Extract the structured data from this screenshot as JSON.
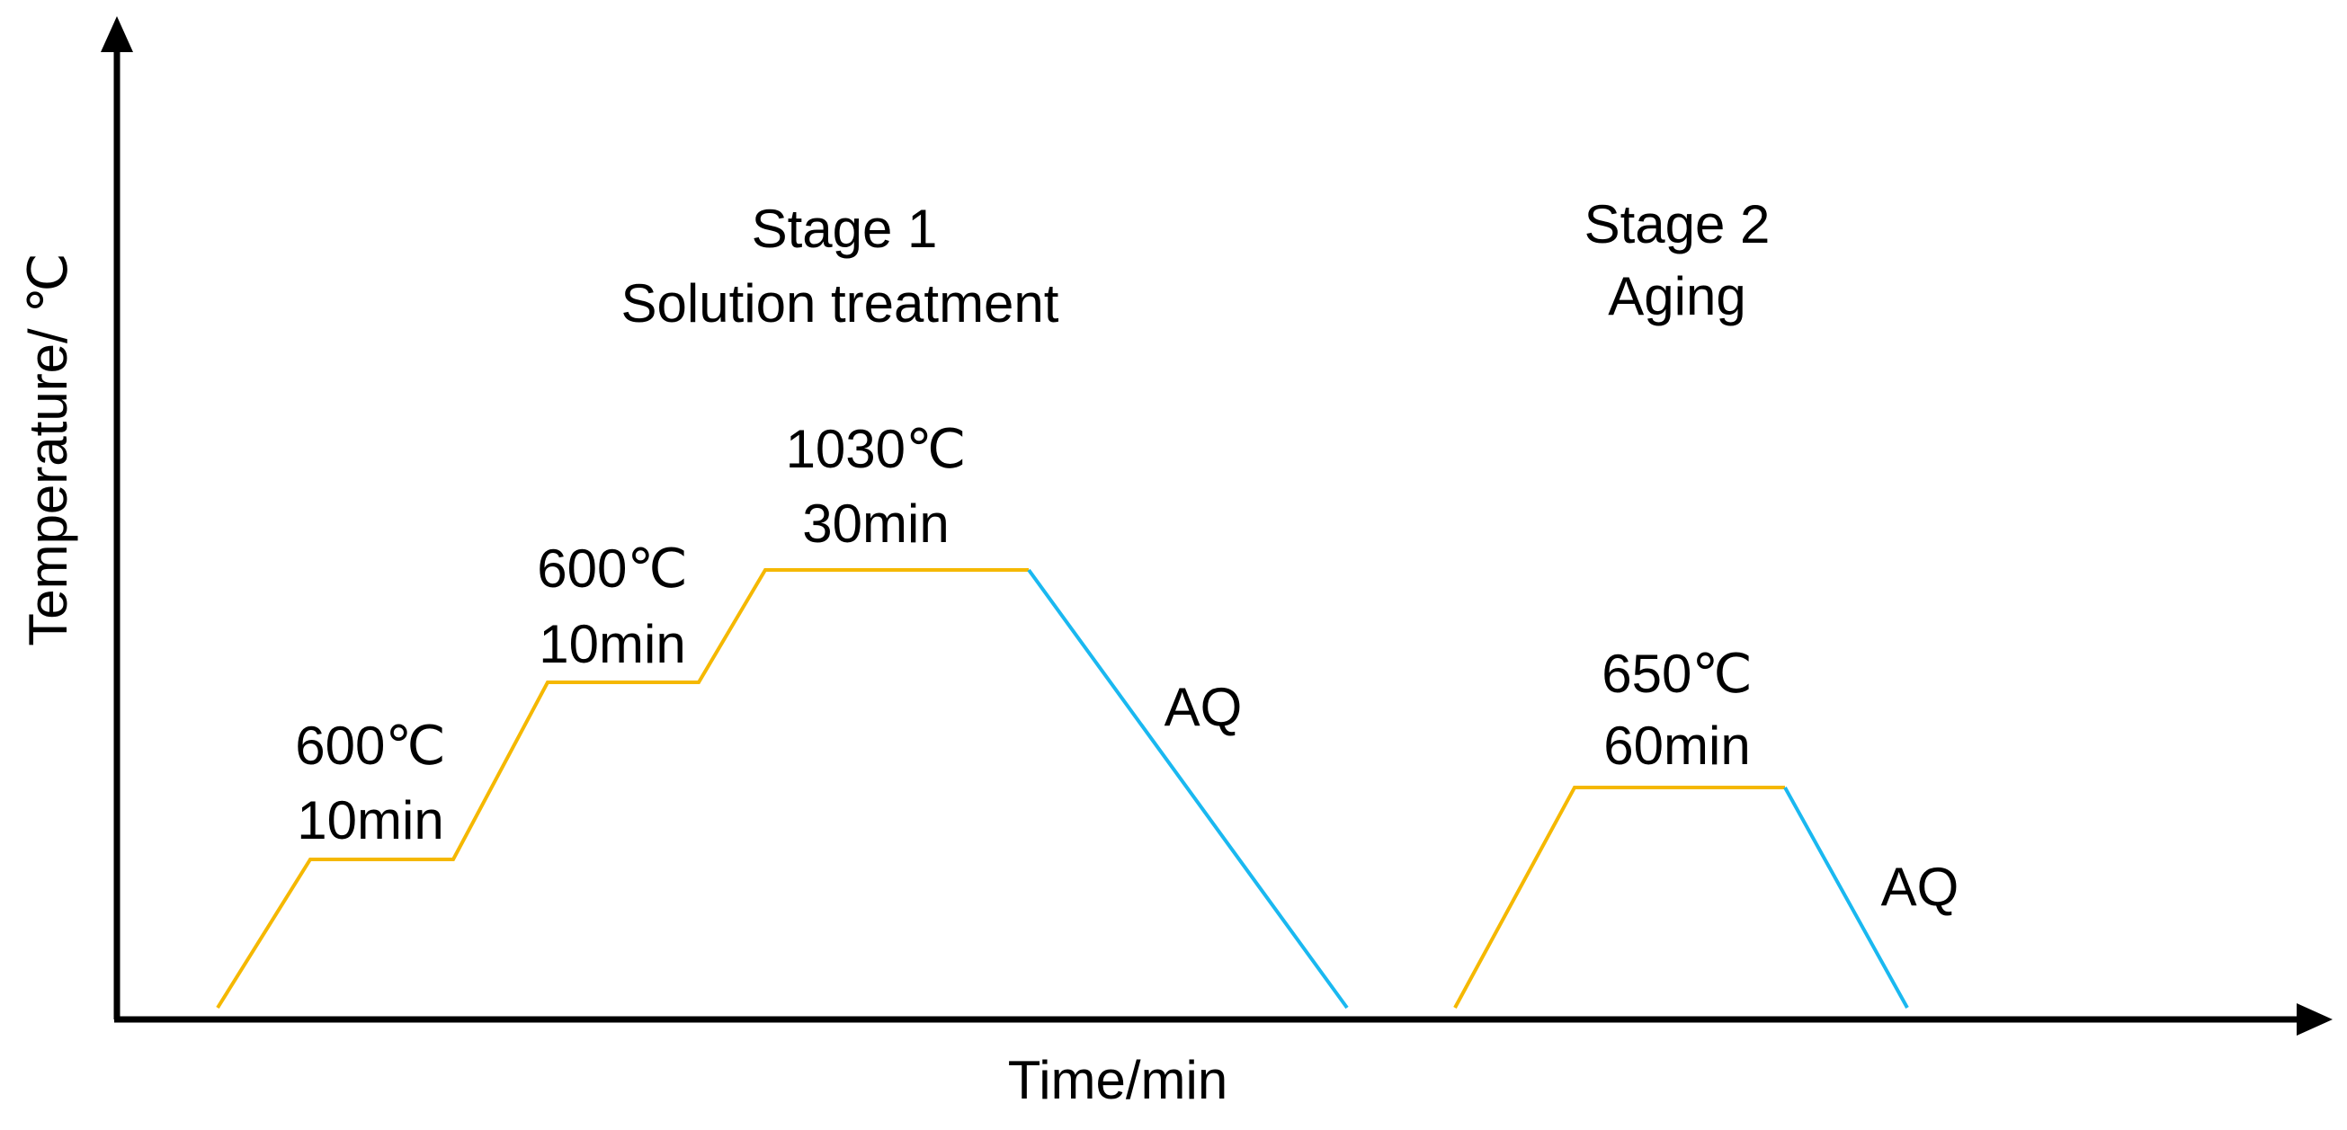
{
  "axes": {
    "x_label": "Time/min",
    "y_label": "Temperature/ ℃"
  },
  "stages": [
    {
      "title": "Stage 1",
      "subtitle": "Solution treatment"
    },
    {
      "title": "Stage 2",
      "subtitle": "Aging"
    }
  ],
  "steps": [
    {
      "temperature": "600℃",
      "time": "10min"
    },
    {
      "temperature": "600℃",
      "time": "10min"
    },
    {
      "temperature": "1030℃",
      "time": "30min"
    },
    {
      "temperature": "650℃",
      "time": "60min"
    }
  ],
  "quench_labels": [
    "AQ",
    "AQ"
  ]
}
